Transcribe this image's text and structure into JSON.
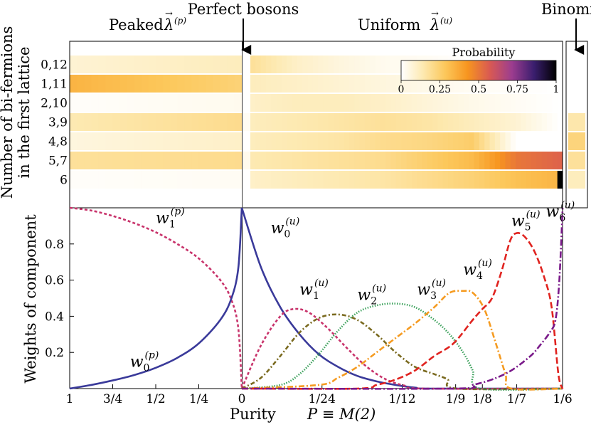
{
  "chart_data": [
    {
      "type": "heatmap",
      "ylabel_lines": [
        "Number of bi-fermions",
        "in the first lattice"
      ],
      "row_labels": [
        "0,12",
        "1,11",
        "2,10",
        "3,9",
        "4,8",
        "5,7",
        "6"
      ],
      "region_labels": {
        "peaked": "Peaked",
        "peaked_symbol": "λ",
        "peaked_superscript": "(p)",
        "perfect_bosons": "Perfect bosons",
        "uniform": "Uniform",
        "uniform_symbol": "λ",
        "uniform_superscript": "(u)",
        "binomial": "Binomial"
      },
      "colorbar": {
        "title": "Probability",
        "ticks": [
          "0",
          "0.25",
          "0.5",
          "0.75",
          "1"
        ],
        "colors": [
          "#ffffff",
          "#fde9b0",
          "#fcc75a",
          "#f7951f",
          "#d95a52",
          "#9c3d8f",
          "#3a1e6e",
          "#000000"
        ]
      },
      "rows": [
        {
          "label": "0,12",
          "peaked": [
            0.08,
            0.12
          ],
          "dip": 0.0,
          "uniform": [
            0.18,
            0.1,
            0.06,
            0.03,
            0.02,
            0.0,
            0.0,
            0.0
          ],
          "uniform_end": 0.0,
          "binomial": 0.0
        },
        {
          "label": "1,11",
          "peaked": [
            0.34,
            0.24
          ],
          "dip": 0.0,
          "uniform": [
            0.12,
            0.1,
            0.08,
            0.06,
            0.04,
            0.02,
            0.01,
            0.0
          ],
          "uniform_end": 0.0,
          "binomial": 0.0
        },
        {
          "label": "2,10",
          "peaked": [
            0.01,
            0.03
          ],
          "dip": 0.0,
          "uniform": [
            0.1,
            0.12,
            0.12,
            0.1,
            0.07,
            0.04,
            0.02,
            0.0
          ],
          "uniform_end": 0.0,
          "binomial": 0.0
        },
        {
          "label": "3,9",
          "peaked": [
            0.14,
            0.2
          ],
          "dip": 0.02,
          "uniform": [
            0.12,
            0.14,
            0.16,
            0.18,
            0.16,
            0.12,
            0.08,
            0.0
          ],
          "uniform_end": 0.0,
          "binomial": 0.15
        },
        {
          "label": "4,8",
          "peaked": [
            0.06,
            0.1
          ],
          "dip": 0.0,
          "uniform": [
            0.12,
            0.14,
            0.16,
            0.2,
            0.22,
            0.26,
            0.0,
            0.0
          ],
          "uniform_end": 0.0,
          "binomial": 0.23
        },
        {
          "label": "5,7",
          "peaked": [
            0.18,
            0.2
          ],
          "dip": 0.03,
          "uniform": [
            0.14,
            0.16,
            0.18,
            0.2,
            0.26,
            0.32,
            0.5,
            0.55
          ],
          "uniform_end": 0.55,
          "binomial": 0.18
        },
        {
          "label": "6",
          "peaked": [
            0.01,
            0.02
          ],
          "dip": 0.0,
          "uniform": [
            0.1,
            0.12,
            0.14,
            0.16,
            0.2,
            0.24,
            0.3,
            0.34
          ],
          "uniform_end": 1.0,
          "binomial": 0.12
        }
      ]
    },
    {
      "type": "line",
      "xlabel": "Purity",
      "xlabel_formula": "P ≡ M(2)",
      "ylabel": "Weights of component",
      "ylim": [
        0,
        1
      ],
      "yticks": [
        "0.2",
        "0.4",
        "0.6",
        "0.8"
      ],
      "xticks_left": [
        "1",
        "3/4",
        "1/2",
        "1/4",
        "0"
      ],
      "xticks_right": [
        "0",
        "1/24",
        "1/12",
        "1/9",
        "1/8",
        "1/7",
        "1/6"
      ],
      "x_domain_left": [
        1,
        0
      ],
      "x_domain_right": [
        0,
        0.16667
      ],
      "series": [
        {
          "name": "w_1^(p)",
          "panel": "left",
          "color": "#c8336b",
          "dash": "4,3",
          "points": [
            [
              1,
              1.0
            ],
            [
              0.875,
              0.985
            ],
            [
              0.75,
              0.955
            ],
            [
              0.625,
              0.915
            ],
            [
              0.5,
              0.865
            ],
            [
              0.375,
              0.8
            ],
            [
              0.25,
              0.72
            ],
            [
              0.125,
              0.6
            ],
            [
              0.06,
              0.49
            ],
            [
              0.02,
              0.33
            ],
            [
              0.0,
              0.0
            ]
          ]
        },
        {
          "name": "w_0^(p)",
          "panel": "left",
          "color": "#3a3a9a",
          "dash": "",
          "points": [
            [
              1,
              0.0
            ],
            [
              0.875,
              0.02
            ],
            [
              0.75,
              0.045
            ],
            [
              0.625,
              0.075
            ],
            [
              0.5,
              0.115
            ],
            [
              0.375,
              0.17
            ],
            [
              0.25,
              0.25
            ],
            [
              0.125,
              0.38
            ],
            [
              0.06,
              0.5
            ],
            [
              0.02,
              0.67
            ],
            [
              0.0,
              1.0
            ]
          ]
        },
        {
          "name": "w_0^(u)",
          "panel": "right",
          "color": "#3a3a9a",
          "dash": "",
          "points": [
            [
              0.0,
              1.0
            ],
            [
              0.01,
              0.67
            ],
            [
              0.02,
              0.45
            ],
            [
              0.03,
              0.3
            ],
            [
              0.04,
              0.19
            ],
            [
              0.05,
              0.12
            ],
            [
              0.06,
              0.07
            ],
            [
              0.07,
              0.04
            ],
            [
              0.08,
              0.02
            ],
            [
              0.09,
              0.005
            ],
            [
              0.1,
              0.0
            ],
            [
              0.1667,
              0.0
            ]
          ]
        },
        {
          "name": "w_1^(u)",
          "panel": "right",
          "color": "#c8336b",
          "dash": "4,3",
          "points": [
            [
              0.0,
              0.0
            ],
            [
              0.01,
              0.24
            ],
            [
              0.02,
              0.4
            ],
            [
              0.027,
              0.44
            ],
            [
              0.035,
              0.42
            ],
            [
              0.045,
              0.33
            ],
            [
              0.055,
              0.22
            ],
            [
              0.065,
              0.12
            ],
            [
              0.075,
              0.05
            ],
            [
              0.085,
              0.015
            ],
            [
              0.095,
              0.0
            ],
            [
              0.1667,
              0.0
            ]
          ]
        },
        {
          "name": "w_2^(u)",
          "panel": "right",
          "color": "#7a6a1f",
          "dash": "6,3,2,3",
          "points": [
            [
              0.0,
              0.0
            ],
            [
              0.01,
              0.06
            ],
            [
              0.02,
              0.18
            ],
            [
              0.03,
              0.31
            ],
            [
              0.04,
              0.39
            ],
            [
              0.05,
              0.41
            ],
            [
              0.06,
              0.38
            ],
            [
              0.07,
              0.3
            ],
            [
              0.08,
              0.2
            ],
            [
              0.09,
              0.12
            ],
            [
              0.1,
              0.08
            ],
            [
              0.107,
              0.05
            ],
            [
              0.112,
              0.0
            ],
            [
              0.1667,
              0.0
            ]
          ]
        },
        {
          "name": "w_3^(u)",
          "panel": "right",
          "color": "#3aa05a",
          "dash": "1.5,2",
          "points": [
            [
              0.0,
              0.0
            ],
            [
              0.02,
              0.02
            ],
            [
              0.03,
              0.08
            ],
            [
              0.04,
              0.19
            ],
            [
              0.05,
              0.32
            ],
            [
              0.06,
              0.42
            ],
            [
              0.07,
              0.46
            ],
            [
              0.08,
              0.47
            ],
            [
              0.09,
              0.45
            ],
            [
              0.1,
              0.38
            ],
            [
              0.108,
              0.3
            ],
            [
              0.115,
              0.2
            ],
            [
              0.12,
              0.1
            ],
            [
              0.124,
              0.0
            ],
            [
              0.1667,
              0.0
            ]
          ]
        },
        {
          "name": "w_4^(u)",
          "panel": "right",
          "color": "#f59b21",
          "dash": "8,3,2,3",
          "points": [
            [
              0.0,
              0.0
            ],
            [
              0.04,
              0.02
            ],
            [
              0.05,
              0.06
            ],
            [
              0.06,
              0.12
            ],
            [
              0.07,
              0.2
            ],
            [
              0.08,
              0.28
            ],
            [
              0.09,
              0.36
            ],
            [
              0.1,
              0.45
            ],
            [
              0.108,
              0.53
            ],
            [
              0.115,
              0.54
            ],
            [
              0.12,
              0.53
            ],
            [
              0.126,
              0.44
            ],
            [
              0.132,
              0.25
            ],
            [
              0.137,
              0.08
            ],
            [
              0.14,
              0.0
            ],
            [
              0.1667,
              0.0
            ]
          ]
        },
        {
          "name": "w_5^(u)",
          "panel": "right",
          "color": "#e0231f",
          "dash": "9,4",
          "points": [
            [
              0.0,
              0.0
            ],
            [
              0.06,
              0.0
            ],
            [
              0.07,
              0.02
            ],
            [
              0.08,
              0.05
            ],
            [
              0.09,
              0.1
            ],
            [
              0.1,
              0.18
            ],
            [
              0.11,
              0.25
            ],
            [
              0.12,
              0.38
            ],
            [
              0.125,
              0.44
            ],
            [
              0.13,
              0.5
            ],
            [
              0.135,
              0.65
            ],
            [
              0.1395,
              0.82
            ],
            [
              0.1428,
              0.86
            ],
            [
              0.147,
              0.84
            ],
            [
              0.152,
              0.76
            ],
            [
              0.157,
              0.62
            ],
            [
              0.161,
              0.45
            ],
            [
              0.1645,
              0.08
            ],
            [
              0.1667,
              0.0
            ]
          ]
        },
        {
          "name": "w_6^(u)",
          "panel": "right",
          "color": "#7a1a8a",
          "dash": "9,3,2,3",
          "points": [
            [
              0.0,
              0.0
            ],
            [
              0.11,
              0.0
            ],
            [
              0.12,
              0.02
            ],
            [
              0.13,
              0.05
            ],
            [
              0.14,
              0.1
            ],
            [
              0.15,
              0.18
            ],
            [
              0.155,
              0.24
            ],
            [
              0.16,
              0.31
            ],
            [
              0.163,
              0.38
            ],
            [
              0.165,
              0.6
            ],
            [
              0.1667,
              1.0
            ]
          ]
        }
      ],
      "annotations": [
        {
          "base": "w",
          "sub": "1",
          "sup": "(p)",
          "at": [
            0.5,
            0.915
          ]
        },
        {
          "base": "w",
          "sub": "0",
          "sup": "(p)",
          "at": [
            0.65,
            0.12
          ]
        },
        {
          "base": "w",
          "sub": "0",
          "sup": "(u)",
          "at": [
            0.015,
            0.86
          ]
        },
        {
          "base": "w",
          "sub": "1",
          "sup": "(u)",
          "at": [
            0.03,
            0.52
          ]
        },
        {
          "base": "w",
          "sub": "2",
          "sup": "(u)",
          "at": [
            0.06,
            0.49
          ]
        },
        {
          "base": "w",
          "sub": "3",
          "sup": "(u)",
          "at": [
            0.091,
            0.52
          ]
        },
        {
          "base": "w",
          "sub": "4",
          "sup": "(u)",
          "at": [
            0.115,
            0.63
          ]
        },
        {
          "base": "w",
          "sub": "5",
          "sup": "(u)",
          "at": [
            0.14,
            0.9
          ]
        },
        {
          "base": "w",
          "sub": "6",
          "sup": "(u)",
          "at": [
            0.158,
            0.95
          ]
        }
      ]
    }
  ]
}
